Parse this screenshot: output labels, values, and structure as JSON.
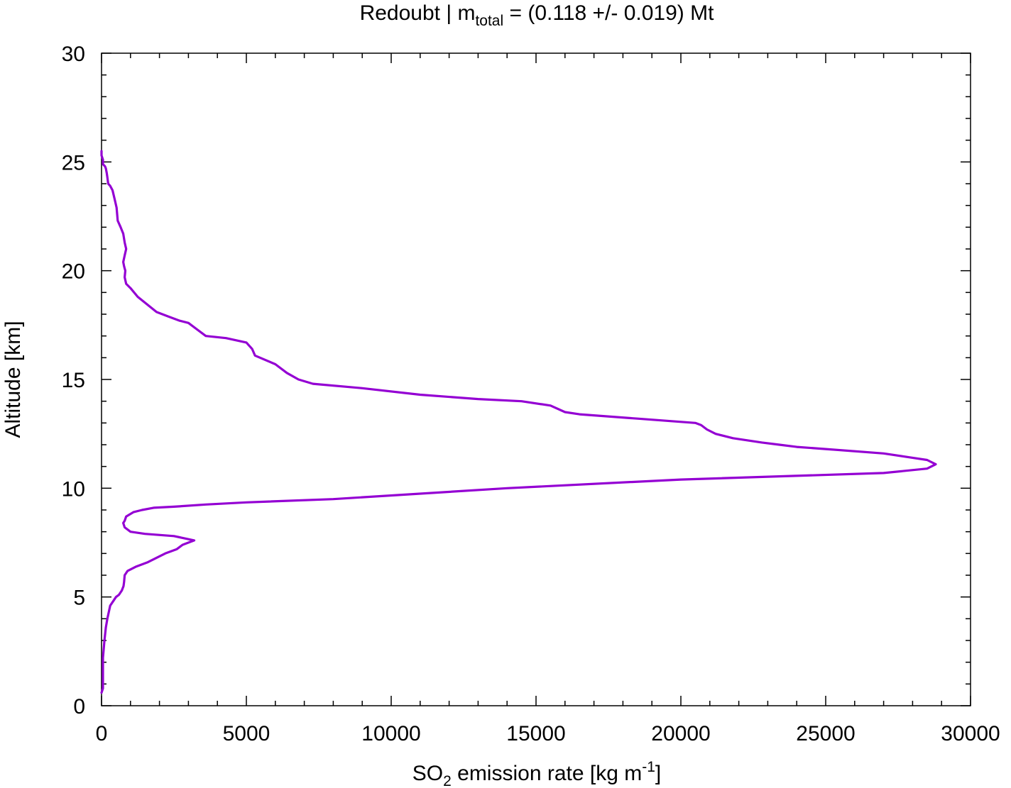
{
  "chart_data": {
    "type": "line",
    "title": {
      "prefix": "Redoubt | m",
      "subscript": "total",
      "suffix": " = (0.118 +/- 0.019) Mt"
    },
    "xlabel": {
      "prefix": "SO",
      "subscript": "2",
      "middle": " emission rate [kg m",
      "superscript": "-1",
      "suffix": "]"
    },
    "ylabel": "Altitude [km]",
    "xlim": [
      0,
      30000
    ],
    "ylim": [
      0,
      30
    ],
    "xticks": [
      0,
      5000,
      10000,
      15000,
      20000,
      25000,
      30000
    ],
    "xtick_labels": [
      "0",
      "5000",
      "10000",
      "15000",
      "20000",
      "25000",
      "30000"
    ],
    "yticks": [
      0,
      5,
      10,
      15,
      20,
      25,
      30
    ],
    "ytick_labels": [
      "0",
      "5",
      "10",
      "15",
      "20",
      "25",
      "30"
    ],
    "grid": false,
    "line_color": "#9400d3",
    "series": [
      {
        "x": [
          0,
          0,
          50,
          50,
          50,
          80,
          120,
          150,
          180,
          200,
          230,
          300,
          380,
          450,
          520,
          560,
          660,
          750,
          800,
          850,
          800,
          750,
          780,
          820,
          800,
          850,
          1000,
          1250,
          1900,
          2300,
          2700,
          3000,
          3300,
          3600,
          4300,
          5000,
          5200,
          5300,
          6000,
          6400,
          6800,
          7300,
          9000,
          11000,
          13000,
          14500,
          15500,
          16000,
          16500,
          18500,
          20500,
          20700,
          20900,
          21200,
          21800,
          22800,
          23400,
          24000,
          25000,
          27000,
          28000,
          28500,
          28800,
          28500,
          27000,
          20000,
          14000,
          8000,
          5000,
          3600,
          2500,
          1800,
          1400,
          1100,
          850,
          800,
          750,
          800,
          1000,
          1500,
          2500,
          3200,
          3000,
          2800,
          2600,
          2200,
          1600,
          1200,
          900,
          800,
          780,
          760,
          700,
          600,
          500,
          400,
          300,
          250,
          200,
          150,
          100,
          50,
          50,
          50,
          0
        ],
        "y": [
          25.5,
          25.3,
          25.1,
          25.0,
          24.9,
          24.85,
          24.8,
          24.7,
          24.5,
          24.3,
          24.0,
          23.9,
          23.7,
          23.3,
          22.9,
          22.3,
          22.0,
          21.7,
          21.3,
          21.0,
          20.7,
          20.4,
          20.2,
          20.0,
          19.7,
          19.4,
          19.2,
          18.8,
          18.1,
          17.9,
          17.7,
          17.6,
          17.3,
          17.0,
          16.9,
          16.7,
          16.4,
          16.1,
          15.7,
          15.3,
          15.0,
          14.8,
          14.6,
          14.3,
          14.1,
          14.0,
          13.8,
          13.5,
          13.4,
          13.2,
          13.0,
          12.9,
          12.7,
          12.5,
          12.3,
          12.1,
          12.0,
          11.9,
          11.8,
          11.6,
          11.4,
          11.3,
          11.1,
          10.9,
          10.7,
          10.4,
          10.0,
          9.5,
          9.35,
          9.25,
          9.15,
          9.1,
          9.0,
          8.9,
          8.7,
          8.5,
          8.4,
          8.2,
          8.0,
          7.9,
          7.8,
          7.6,
          7.5,
          7.4,
          7.2,
          7.0,
          6.6,
          6.4,
          6.2,
          6.0,
          5.7,
          5.5,
          5.3,
          5.1,
          5.0,
          4.8,
          4.6,
          4.3,
          4.0,
          3.6,
          3.0,
          2.2,
          1.5,
          0.8,
          0.6
        ]
      }
    ]
  }
}
